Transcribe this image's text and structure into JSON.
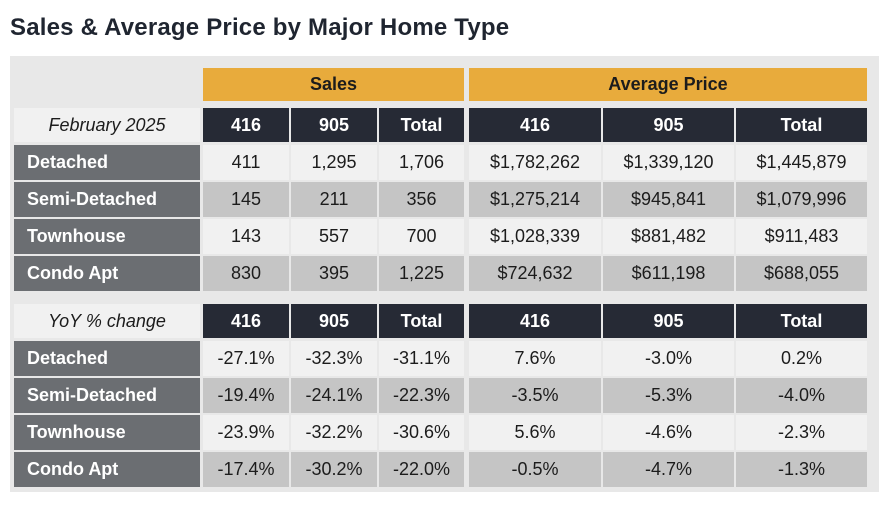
{
  "title": "Sales & Average Price by Major Home Type",
  "groups": {
    "sales": "Sales",
    "price": "Average Price"
  },
  "chart_data": {
    "type": "table",
    "tables": [
      {
        "period": "February 2025",
        "columns": [
          "416",
          "905",
          "Total",
          "416",
          "905",
          "Total"
        ],
        "rows": [
          {
            "label": "Detached",
            "values": [
              "411",
              "1,295",
              "1,706",
              "$1,782,262",
              "$1,339,120",
              "$1,445,879"
            ]
          },
          {
            "label": "Semi-Detached",
            "values": [
              "145",
              "211",
              "356",
              "$1,275,214",
              "$945,841",
              "$1,079,996"
            ]
          },
          {
            "label": "Townhouse",
            "values": [
              "143",
              "557",
              "700",
              "$1,028,339",
              "$881,482",
              "$911,483"
            ]
          },
          {
            "label": "Condo Apt",
            "values": [
              "830",
              "395",
              "1,225",
              "$724,632",
              "$611,198",
              "$688,055"
            ]
          }
        ]
      },
      {
        "period": "YoY % change",
        "columns": [
          "416",
          "905",
          "Total",
          "416",
          "905",
          "Total"
        ],
        "rows": [
          {
            "label": "Detached",
            "values": [
              "-27.1%",
              "-32.3%",
              "-31.1%",
              "7.6%",
              "-3.0%",
              "0.2%"
            ]
          },
          {
            "label": "Semi-Detached",
            "values": [
              "-19.4%",
              "-24.1%",
              "-22.3%",
              "-3.5%",
              "-5.3%",
              "-4.0%"
            ]
          },
          {
            "label": "Townhouse",
            "values": [
              "-23.9%",
              "-32.2%",
              "-30.6%",
              "5.6%",
              "-4.6%",
              "-2.3%"
            ]
          },
          {
            "label": "Condo Apt",
            "values": [
              "-17.4%",
              "-30.2%",
              "-22.0%",
              "-0.5%",
              "-4.7%",
              "-1.3%"
            ]
          }
        ]
      }
    ]
  }
}
